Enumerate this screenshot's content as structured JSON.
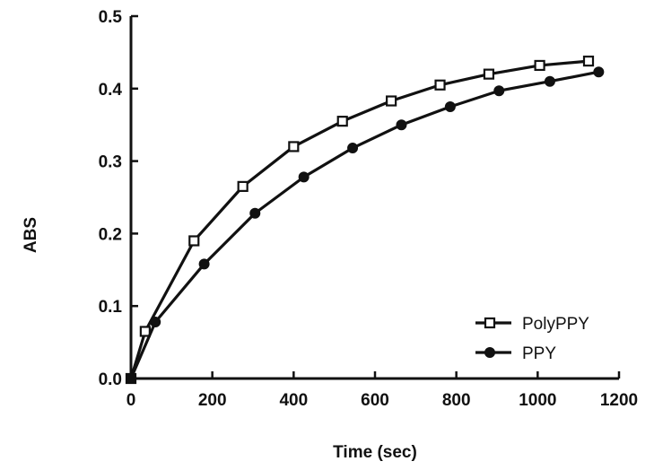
{
  "chart_data": {
    "type": "line",
    "title": "",
    "xlabel": "Time (sec)",
    "ylabel": "ABS",
    "xlim": [
      0,
      1200
    ],
    "ylim": [
      0,
      0.5
    ],
    "xticks": [
      0,
      200,
      400,
      600,
      800,
      1000,
      1200
    ],
    "yticks": [
      0,
      0.1,
      0.2,
      0.3,
      0.4,
      0.5
    ],
    "xtick_labels": [
      "0",
      "200",
      "400",
      "600",
      "800",
      "1000",
      "1200"
    ],
    "ytick_labels": [
      "0.0",
      "0.1",
      "0.2",
      "0.3",
      "0.4",
      "0.5"
    ],
    "grid": false,
    "legend_position": "bottom-right",
    "series": [
      {
        "name": "PolyPPY",
        "marker": "square-open",
        "color": "#111111",
        "x": [
          0,
          35,
          155,
          275,
          400,
          520,
          640,
          760,
          880,
          1005,
          1125
        ],
        "y": [
          0.0,
          0.065,
          0.19,
          0.265,
          0.32,
          0.355,
          0.383,
          0.405,
          0.42,
          0.432,
          0.438
        ]
      },
      {
        "name": "PPY",
        "marker": "circle-filled",
        "color": "#111111",
        "x": [
          0,
          60,
          180,
          305,
          425,
          545,
          665,
          785,
          905,
          1030,
          1150
        ],
        "y": [
          0.0,
          0.078,
          0.158,
          0.228,
          0.278,
          0.318,
          0.35,
          0.375,
          0.397,
          0.41,
          0.423
        ]
      }
    ]
  }
}
